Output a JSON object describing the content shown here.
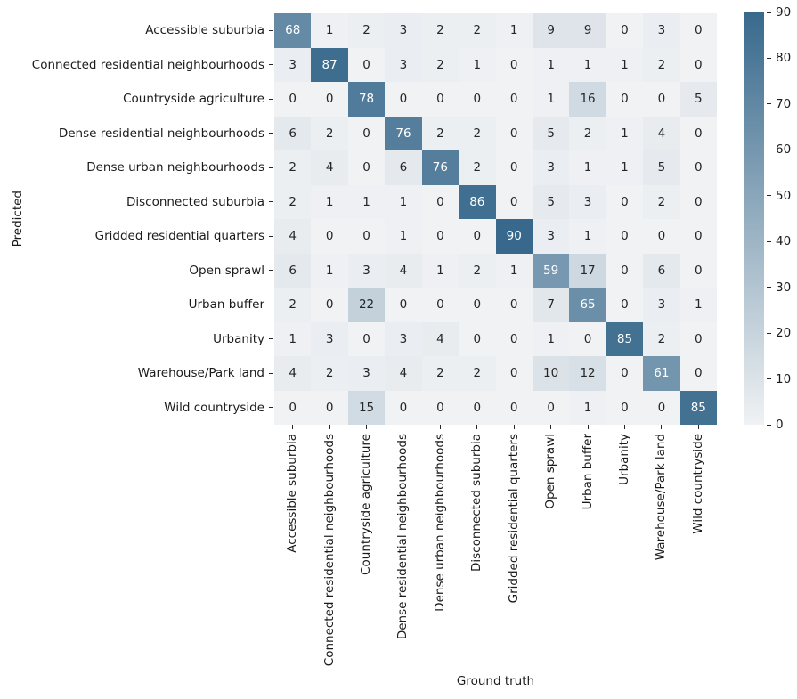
{
  "figure": {
    "xlabel": "Ground truth",
    "ylabel": "Predicted"
  },
  "chart_data": {
    "type": "heatmap",
    "title": "",
    "xlabel": "Ground truth",
    "ylabel": "Predicted",
    "categories": [
      "Accessible suburbia",
      "Connected residential neighbourhoods",
      "Countryside agriculture",
      "Dense residential neighbourhoods",
      "Dense urban neighbourhoods",
      "Disconnected suburbia",
      "Gridded residential quarters",
      "Open sprawl",
      "Urban buffer",
      "Urbanity",
      "Warehouse/Park land",
      "Wild countryside"
    ],
    "rows": [
      [
        68,
        1,
        2,
        3,
        2,
        2,
        1,
        9,
        9,
        0,
        3,
        0
      ],
      [
        3,
        87,
        0,
        3,
        2,
        1,
        0,
        1,
        1,
        1,
        2,
        0
      ],
      [
        0,
        0,
        78,
        0,
        0,
        0,
        0,
        1,
        16,
        0,
        0,
        5
      ],
      [
        6,
        2,
        0,
        76,
        2,
        2,
        0,
        5,
        2,
        1,
        4,
        0
      ],
      [
        2,
        4,
        0,
        6,
        76,
        2,
        0,
        3,
        1,
        1,
        5,
        0
      ],
      [
        2,
        1,
        1,
        1,
        0,
        86,
        0,
        5,
        3,
        0,
        2,
        0
      ],
      [
        4,
        0,
        0,
        1,
        0,
        0,
        90,
        3,
        1,
        0,
        0,
        0
      ],
      [
        6,
        1,
        3,
        4,
        1,
        2,
        1,
        59,
        17,
        0,
        6,
        0
      ],
      [
        2,
        0,
        22,
        0,
        0,
        0,
        0,
        7,
        65,
        0,
        3,
        1
      ],
      [
        1,
        3,
        0,
        3,
        4,
        0,
        0,
        1,
        0,
        85,
        2,
        0
      ],
      [
        4,
        2,
        3,
        4,
        2,
        2,
        0,
        10,
        12,
        0,
        61,
        0
      ],
      [
        0,
        0,
        15,
        0,
        0,
        0,
        0,
        0,
        1,
        0,
        0,
        85
      ]
    ],
    "colorbar": {
      "min": 0,
      "max": 90,
      "ticks": [
        0,
        10,
        20,
        30,
        40,
        50,
        60,
        70,
        80,
        90
      ]
    },
    "colors": {
      "low": "#f0f2f4",
      "high": "#38698c",
      "annot_dark": "#262626",
      "annot_light": "#ffffff"
    },
    "legend_position": "right",
    "grid": false
  }
}
